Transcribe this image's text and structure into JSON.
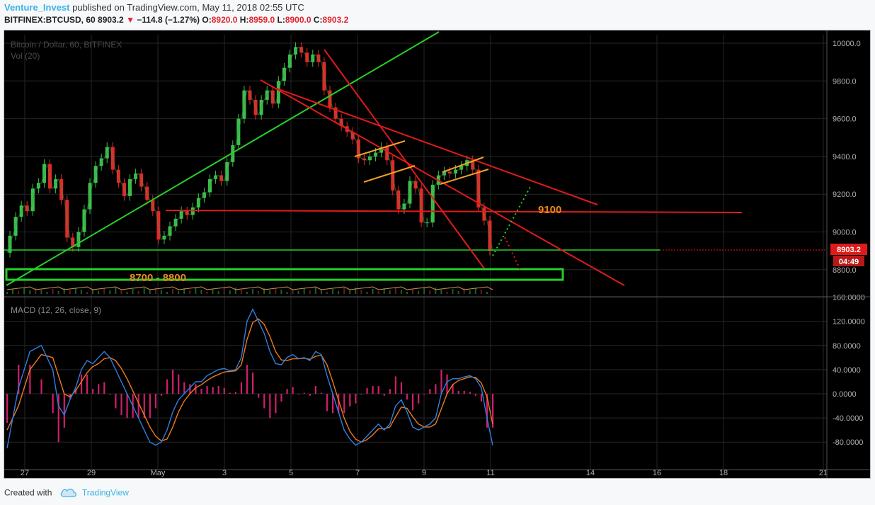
{
  "header": {
    "author": "Venture_Invest",
    "published_text": "published on TradingView.com, May 11, 2018 02:55 UTC",
    "symbol": "BITFINEX:BTCUSD, 60",
    "last": "8903.2",
    "change_arrow": "▼",
    "change": "−114.8 (−1.27%)",
    "open_label": "O:",
    "open": "8920.0",
    "high_label": "H:",
    "high": "8959.0",
    "low_label": "L:",
    "low": "8900.0",
    "close_label": "C:",
    "close": "8903.2"
  },
  "footer": {
    "created_with": "Created with",
    "brand": "TradingView"
  },
  "colors": {
    "bg": "#000000",
    "up": "#3dbd4d",
    "down": "#e02a2a",
    "green_line": "#27d027",
    "red_line": "#e01a1a",
    "orange": "#f3a228",
    "macd": "#2f7fe0",
    "signal": "#f07a1a",
    "hist": "#d01e6e"
  },
  "chart_data": [
    {
      "type": "line",
      "title": "Bitcoin / Dollar, 60, BITFINEX",
      "volume_label": "Vol (20)",
      "x_ticks": [
        "27",
        "29",
        "May",
        "3",
        "5",
        "7",
        "9",
        "11",
        "14",
        "16",
        "18",
        "21"
      ],
      "y_ticks": [
        "10000.0",
        "9800.0",
        "9600.0",
        "9400.0",
        "9200.0",
        "9000.0",
        "8800.0"
      ],
      "ylim": [
        8700,
        10060
      ],
      "price_tag": "8903.2",
      "time_tag": "04:49",
      "series": [
        {
          "values": [
            [
              0,
              8890
            ],
            [
              2,
              8980
            ],
            [
              4,
              9080
            ],
            [
              6,
              9140
            ],
            [
              8,
              9110
            ],
            [
              10,
              9230
            ],
            [
              12,
              9260
            ],
            [
              14,
              9360
            ],
            [
              16,
              9230
            ],
            [
              18,
              9280
            ],
            [
              20,
              9170
            ],
            [
              22,
              8970
            ],
            [
              24,
              8920
            ],
            [
              26,
              9000
            ],
            [
              28,
              9120
            ],
            [
              30,
              9260
            ],
            [
              32,
              9350
            ],
            [
              34,
              9390
            ],
            [
              36,
              9450
            ],
            [
              38,
              9330
            ],
            [
              40,
              9260
            ],
            [
              42,
              9190
            ],
            [
              44,
              9280
            ],
            [
              46,
              9310
            ],
            [
              48,
              9240
            ],
            [
              50,
              9170
            ],
            [
              52,
              9110
            ],
            [
              54,
              8960
            ],
            [
              56,
              8980
            ],
            [
              58,
              9030
            ],
            [
              60,
              9070
            ],
            [
              62,
              9110
            ],
            [
              64,
              9090
            ],
            [
              66,
              9130
            ],
            [
              68,
              9180
            ],
            [
              70,
              9210
            ],
            [
              72,
              9280
            ],
            [
              74,
              9300
            ],
            [
              76,
              9270
            ],
            [
              78,
              9370
            ],
            [
              80,
              9460
            ],
            [
              82,
              9600
            ],
            [
              84,
              9750
            ],
            [
              86,
              9700
            ],
            [
              88,
              9620
            ],
            [
              90,
              9700
            ],
            [
              92,
              9750
            ],
            [
              94,
              9680
            ],
            [
              96,
              9800
            ],
            [
              98,
              9870
            ],
            [
              100,
              9940
            ],
            [
              102,
              9980
            ],
            [
              104,
              9950
            ],
            [
              106,
              9900
            ],
            [
              108,
              9940
            ],
            [
              110,
              9900
            ],
            [
              112,
              9750
            ],
            [
              114,
              9660
            ],
            [
              116,
              9600
            ],
            [
              118,
              9560
            ],
            [
              120,
              9530
            ],
            [
              122,
              9490
            ],
            [
              124,
              9390
            ],
            [
              126,
              9380
            ],
            [
              128,
              9400
            ],
            [
              130,
              9420
            ],
            [
              132,
              9450
            ],
            [
              134,
              9380
            ],
            [
              136,
              9220
            ],
            [
              138,
              9120
            ],
            [
              140,
              9150
            ],
            [
              142,
              9270
            ],
            [
              144,
              9230
            ],
            [
              146,
              9050
            ],
            [
              148,
              9050
            ],
            [
              150,
              9250
            ],
            [
              152,
              9300
            ],
            [
              154,
              9320
            ],
            [
              156,
              9310
            ],
            [
              158,
              9330
            ],
            [
              160,
              9350
            ],
            [
              162,
              9380
            ],
            [
              164,
              9330
            ],
            [
              166,
              9130
            ],
            [
              168,
              9060
            ],
            [
              170,
              8900
            ]
          ]
        }
      ],
      "annotations": [
        "8700 - 8800",
        "9100"
      ]
    },
    {
      "type": "line",
      "title": "MACD (12, 26, close, 9)",
      "y_ticks": [
        "160.0000",
        "120.0000",
        "80.0000",
        "40.0000",
        "0.0000",
        "-40.0000",
        "-80.0000"
      ],
      "ylim": [
        -125,
        160
      ],
      "series": [
        {
          "name": "MACD",
          "values": [
            [
              0,
              -90
            ],
            [
              4,
              10
            ],
            [
              8,
              70
            ],
            [
              12,
              80
            ],
            [
              16,
              40
            ],
            [
              18,
              -20
            ],
            [
              20,
              -35
            ],
            [
              22,
              -10
            ],
            [
              24,
              10
            ],
            [
              26,
              40
            ],
            [
              28,
              55
            ],
            [
              30,
              50
            ],
            [
              32,
              60
            ],
            [
              34,
              70
            ],
            [
              36,
              60
            ],
            [
              38,
              40
            ],
            [
              40,
              20
            ],
            [
              42,
              0
            ],
            [
              44,
              -20
            ],
            [
              46,
              -40
            ],
            [
              48,
              -60
            ],
            [
              50,
              -80
            ],
            [
              52,
              -85
            ],
            [
              54,
              -80
            ],
            [
              56,
              -60
            ],
            [
              58,
              -30
            ],
            [
              60,
              -10
            ],
            [
              62,
              0
            ],
            [
              64,
              10
            ],
            [
              66,
              20
            ],
            [
              68,
              20
            ],
            [
              70,
              30
            ],
            [
              72,
              35
            ],
            [
              74,
              40
            ],
            [
              76,
              42
            ],
            [
              78,
              38
            ],
            [
              80,
              40
            ],
            [
              82,
              60
            ],
            [
              84,
              120
            ],
            [
              86,
              140
            ],
            [
              88,
              120
            ],
            [
              90,
              100
            ],
            [
              92,
              70
            ],
            [
              94,
              50
            ],
            [
              96,
              48
            ],
            [
              98,
              60
            ],
            [
              100,
              65
            ],
            [
              102,
              58
            ],
            [
              104,
              60
            ],
            [
              106,
              55
            ],
            [
              108,
              70
            ],
            [
              110,
              65
            ],
            [
              112,
              30
            ],
            [
              114,
              0
            ],
            [
              116,
              -30
            ],
            [
              118,
              -60
            ],
            [
              120,
              -75
            ],
            [
              122,
              -85
            ],
            [
              124,
              -80
            ],
            [
              126,
              -70
            ],
            [
              128,
              -60
            ],
            [
              130,
              -50
            ],
            [
              132,
              -60
            ],
            [
              134,
              -50
            ],
            [
              136,
              -20
            ],
            [
              138,
              -10
            ],
            [
              140,
              -30
            ],
            [
              142,
              -55
            ],
            [
              144,
              -60
            ],
            [
              146,
              -55
            ],
            [
              148,
              -50
            ],
            [
              150,
              -40
            ],
            [
              152,
              0
            ],
            [
              154,
              20
            ],
            [
              156,
              25
            ],
            [
              158,
              25
            ],
            [
              160,
              28
            ],
            [
              162,
              30
            ],
            [
              164,
              25
            ],
            [
              166,
              10
            ],
            [
              168,
              -40
            ],
            [
              170,
              -85
            ]
          ]
        },
        {
          "name": "Signal",
          "values": [
            [
              0,
              -60
            ],
            [
              4,
              -20
            ],
            [
              8,
              40
            ],
            [
              12,
              65
            ],
            [
              16,
              60
            ],
            [
              18,
              30
            ],
            [
              20,
              0
            ],
            [
              22,
              -5
            ],
            [
              24,
              5
            ],
            [
              26,
              20
            ],
            [
              28,
              35
            ],
            [
              30,
              45
            ],
            [
              32,
              50
            ],
            [
              34,
              58
            ],
            [
              36,
              60
            ],
            [
              38,
              55
            ],
            [
              40,
              42
            ],
            [
              42,
              25
            ],
            [
              44,
              5
            ],
            [
              46,
              -15
            ],
            [
              48,
              -35
            ],
            [
              50,
              -55
            ],
            [
              52,
              -70
            ],
            [
              54,
              -78
            ],
            [
              56,
              -75
            ],
            [
              58,
              -55
            ],
            [
              60,
              -30
            ],
            [
              62,
              -12
            ],
            [
              64,
              0
            ],
            [
              66,
              10
            ],
            [
              68,
              15
            ],
            [
              70,
              22
            ],
            [
              72,
              28
            ],
            [
              74,
              32
            ],
            [
              76,
              36
            ],
            [
              78,
              37
            ],
            [
              80,
              38
            ],
            [
              82,
              48
            ],
            [
              84,
              90
            ],
            [
              86,
              118
            ],
            [
              88,
              124
            ],
            [
              90,
              115
            ],
            [
              92,
              95
            ],
            [
              94,
              70
            ],
            [
              96,
              56
            ],
            [
              98,
              55
            ],
            [
              100,
              58
            ],
            [
              102,
              58
            ],
            [
              104,
              59
            ],
            [
              106,
              57
            ],
            [
              108,
              62
            ],
            [
              110,
              64
            ],
            [
              112,
              48
            ],
            [
              114,
              20
            ],
            [
              116,
              -10
            ],
            [
              118,
              -40
            ],
            [
              120,
              -62
            ],
            [
              122,
              -75
            ],
            [
              124,
              -80
            ],
            [
              126,
              -76
            ],
            [
              128,
              -68
            ],
            [
              130,
              -58
            ],
            [
              132,
              -58
            ],
            [
              134,
              -55
            ],
            [
              136,
              -38
            ],
            [
              138,
              -22
            ],
            [
              140,
              -24
            ],
            [
              142,
              -38
            ],
            [
              144,
              -50
            ],
            [
              146,
              -55
            ],
            [
              148,
              -55
            ],
            [
              150,
              -50
            ],
            [
              152,
              -25
            ],
            [
              154,
              0
            ],
            [
              156,
              15
            ],
            [
              158,
              22
            ],
            [
              160,
              25
            ],
            [
              162,
              28
            ],
            [
              164,
              27
            ],
            [
              166,
              18
            ],
            [
              168,
              -5
            ],
            [
              170,
              -50
            ]
          ]
        }
      ]
    }
  ]
}
